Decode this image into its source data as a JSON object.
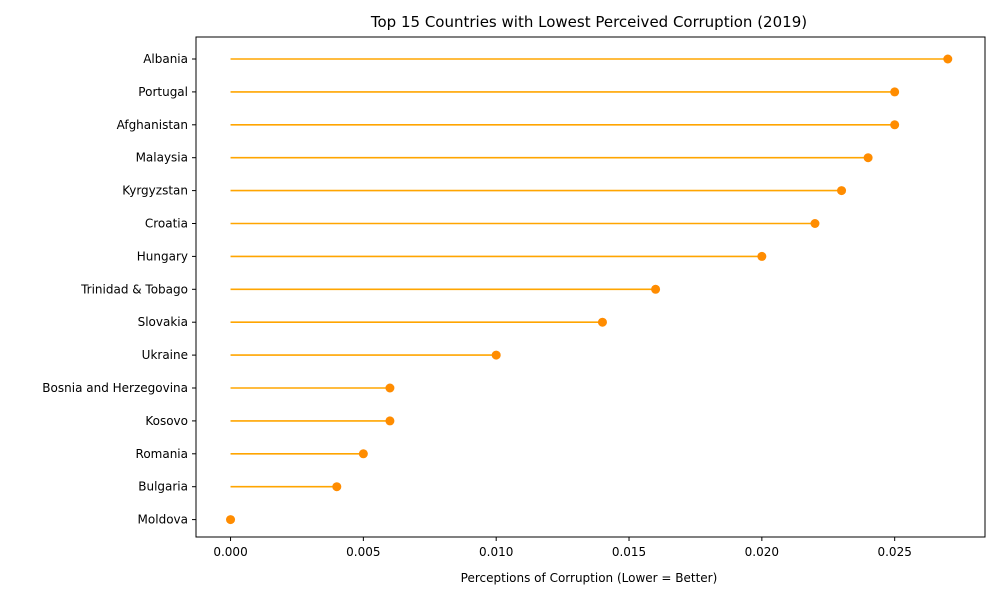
{
  "chart_data": {
    "type": "lollipop",
    "orientation": "horizontal",
    "title": "Top 15 Countries with Lowest Perceived Corruption (2019)",
    "xlabel": "Perceptions of Corruption (Lower = Better)",
    "ylabel": "",
    "xlim": [
      -0.0013,
      0.0284
    ],
    "xticks": [
      0.0,
      0.005,
      0.01,
      0.015,
      0.02,
      0.025
    ],
    "xtick_labels": [
      "0.000",
      "0.005",
      "0.010",
      "0.015",
      "0.020",
      "0.025"
    ],
    "grid": false,
    "line_color": "#ffa500",
    "marker_color": "#ff8c00",
    "categories": [
      "Albania",
      "Portugal",
      "Afghanistan",
      "Malaysia",
      "Kyrgyzstan",
      "Croatia",
      "Hungary",
      "Trinidad & Tobago",
      "Slovakia",
      "Ukraine",
      "Bosnia and Herzegovina",
      "Kosovo",
      "Romania",
      "Bulgaria",
      "Moldova"
    ],
    "values": [
      0.027,
      0.025,
      0.025,
      0.024,
      0.023,
      0.022,
      0.02,
      0.016,
      0.014,
      0.01,
      0.006,
      0.006,
      0.005,
      0.004,
      0.0
    ]
  }
}
